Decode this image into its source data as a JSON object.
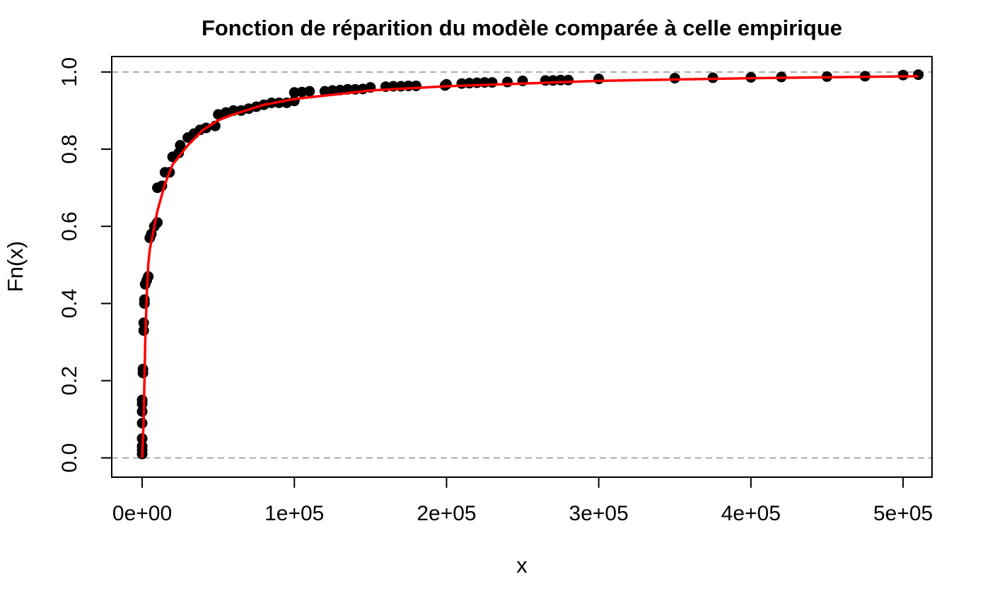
{
  "chart_data": {
    "type": "scatter",
    "title": "Fonction de réparition du modèle comparée à celle empirique",
    "xlabel": "x",
    "ylabel": "Fn(x)",
    "xlim": [
      -20000,
      519000
    ],
    "ylim": [
      -0.05,
      1.04
    ],
    "xticks": [
      {
        "value": 0,
        "label": "0e+00"
      },
      {
        "value": 100000,
        "label": "1e+05"
      },
      {
        "value": 200000,
        "label": "2e+05"
      },
      {
        "value": 300000,
        "label": "3e+05"
      },
      {
        "value": 400000,
        "label": "4e+05"
      },
      {
        "value": 500000,
        "label": "5e+05"
      }
    ],
    "yticks": [
      {
        "value": 0,
        "label": "0.0"
      },
      0.2,
      0.4,
      0.6,
      0.8,
      {
        "value": 1,
        "label": "1.0"
      }
    ],
    "hlines": [
      0,
      1
    ],
    "points": {
      "color": "#000000",
      "x": [
        0,
        0,
        0,
        0,
        0,
        0,
        0,
        0,
        500,
        500,
        1000,
        1000,
        1500,
        1500,
        2000,
        3000,
        4000,
        5000,
        6000,
        8000,
        10000,
        10000,
        13000,
        15000,
        18000,
        20000,
        24000,
        25000,
        30000,
        34000,
        38000,
        42000,
        48000,
        50000,
        55000,
        60000,
        65000,
        70000,
        75000,
        80000,
        85000,
        90000,
        95000,
        100000,
        100000,
        105000,
        110000,
        120000,
        125000,
        130000,
        135000,
        140000,
        145000,
        150000,
        160000,
        165000,
        170000,
        175000,
        180000,
        199000,
        200000,
        210000,
        215000,
        220000,
        225000,
        230000,
        240000,
        250000,
        265000,
        270000,
        275000,
        280000,
        300000,
        350000,
        375000,
        400000,
        420000,
        450000,
        475000,
        500000,
        510000
      ],
      "y": [
        0.01,
        0.02,
        0.03,
        0.05,
        0.09,
        0.12,
        0.14,
        0.15,
        0.22,
        0.23,
        0.33,
        0.35,
        0.4,
        0.41,
        0.45,
        0.46,
        0.47,
        0.57,
        0.58,
        0.6,
        0.61,
        0.7,
        0.705,
        0.74,
        0.74,
        0.78,
        0.79,
        0.81,
        0.83,
        0.84,
        0.85,
        0.855,
        0.86,
        0.89,
        0.895,
        0.9,
        0.9,
        0.905,
        0.91,
        0.915,
        0.92,
        0.92,
        0.92,
        0.925,
        0.947,
        0.948,
        0.95,
        0.95,
        0.952,
        0.953,
        0.955,
        0.955,
        0.956,
        0.96,
        0.962,
        0.963,
        0.963,
        0.964,
        0.964,
        0.965,
        0.968,
        0.97,
        0.971,
        0.972,
        0.973,
        0.973,
        0.974,
        0.977,
        0.978,
        0.978,
        0.979,
        0.979,
        0.982,
        0.984,
        0.985,
        0.986,
        0.987,
        0.988,
        0.989,
        0.992,
        0.993
      ]
    },
    "curve": {
      "color": "#ff0000",
      "x": [
        0,
        1000,
        2000,
        3000,
        4000,
        5000,
        8000,
        10000,
        15000,
        20000,
        30000,
        40000,
        50000,
        60000,
        80000,
        100000,
        150000,
        200000,
        300000,
        400000,
        510000
      ],
      "y": [
        0,
        0.1,
        0.3,
        0.42,
        0.5,
        0.54,
        0.6,
        0.64,
        0.71,
        0.76,
        0.81,
        0.85,
        0.875,
        0.89,
        0.915,
        0.93,
        0.952,
        0.963,
        0.977,
        0.984,
        0.989
      ]
    }
  }
}
